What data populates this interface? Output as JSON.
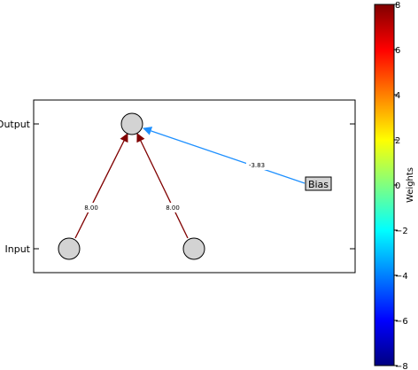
{
  "diagram": {
    "layers": {
      "output_label": "Output",
      "input_label": "Input"
    },
    "nodes": {
      "bias_label": "Bias"
    },
    "edges": [
      {
        "from": "input-1",
        "to": "output-1",
        "weight_label": "8.00",
        "weight": 8.0,
        "color": "#800000"
      },
      {
        "from": "input-2",
        "to": "output-1",
        "weight_label": "8.00",
        "weight": 8.0,
        "color": "#800000"
      },
      {
        "from": "bias",
        "to": "output-1",
        "weight_label": "-3.83",
        "weight": -3.83,
        "color": "#1e90ff"
      }
    ]
  },
  "colorbar": {
    "label": "Weights",
    "ticks": [
      "8",
      "6",
      "4",
      "2",
      "0",
      "−2",
      "−4",
      "−6",
      "−8"
    ],
    "colors": [
      "#800000",
      "#ff0000",
      "#ff8000",
      "#ffff00",
      "#80ff80",
      "#00ffff",
      "#0080ff",
      "#0000ff",
      "#000080"
    ]
  }
}
